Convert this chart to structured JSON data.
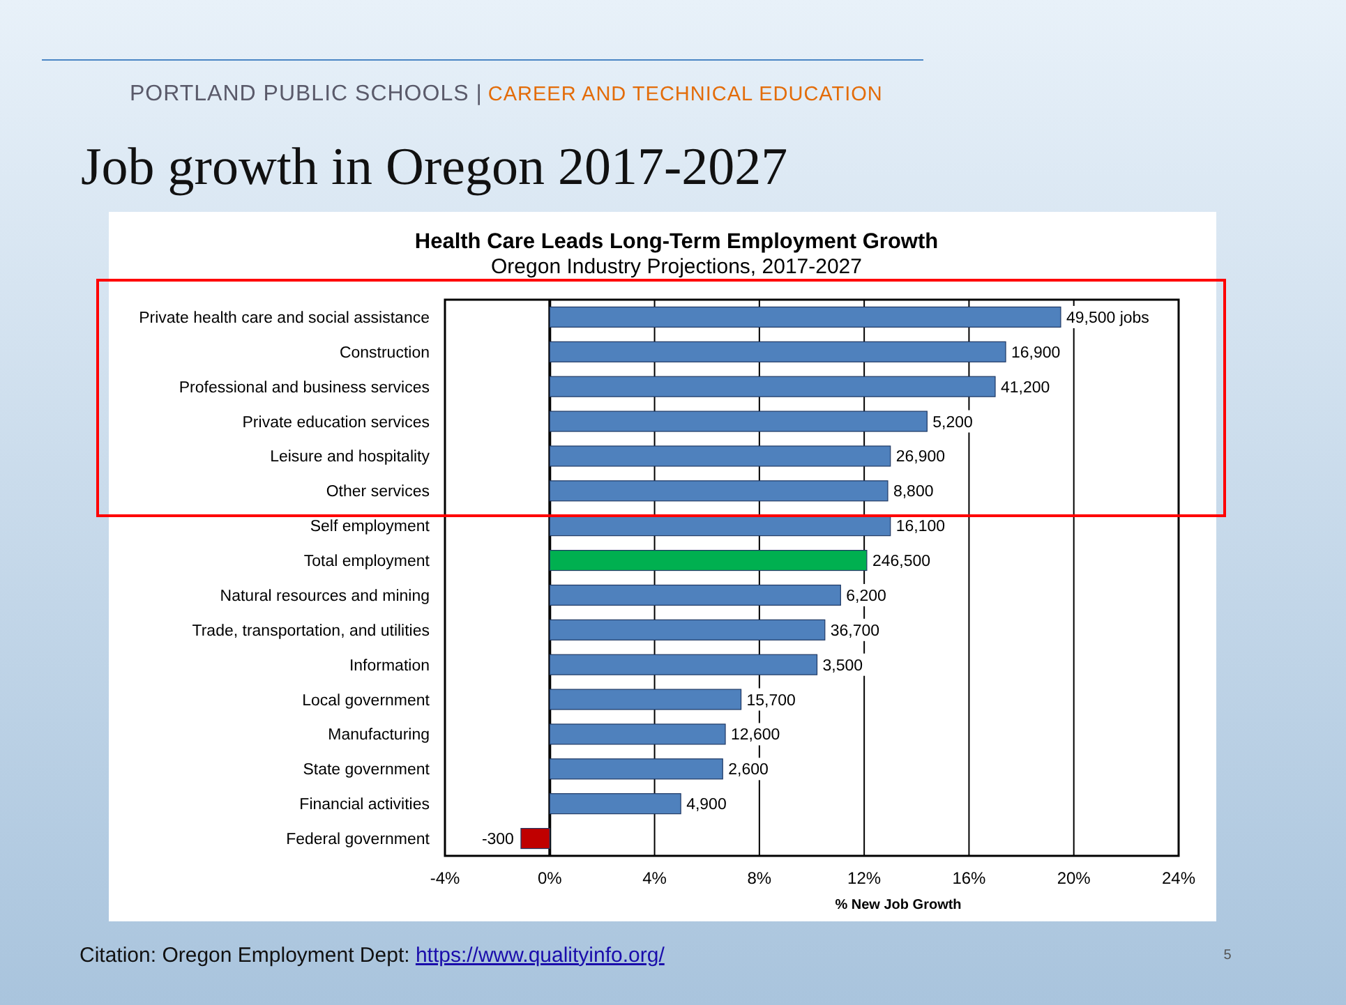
{
  "chart_data": {
    "type": "bar",
    "orientation": "horizontal",
    "title": "Health Care Leads Long-Term Employment Growth",
    "subtitle": "Oregon Industry Projections, 2017-2027",
    "xlabel": "% New Job Growth",
    "categories": [
      "Private health care and social assistance",
      "Construction",
      "Professional and business services",
      "Private education services",
      "Leisure and hospitality",
      "Other services",
      "Self employment",
      "Total employment",
      "Natural resources and mining",
      "Trade, transportation, and utilities",
      "Information",
      "Local government",
      "Manufacturing",
      "State government",
      "Financial activities",
      "Federal government"
    ],
    "values": [
      19.5,
      17.4,
      17.0,
      14.4,
      13.0,
      12.9,
      13.0,
      12.1,
      11.1,
      10.5,
      10.2,
      7.3,
      6.7,
      6.6,
      5.0,
      -1.1
    ],
    "colors": [
      "#4f81bd",
      "#4f81bd",
      "#4f81bd",
      "#4f81bd",
      "#4f81bd",
      "#4f81bd",
      "#4f81bd",
      "#00b050",
      "#4f81bd",
      "#4f81bd",
      "#4f81bd",
      "#4f81bd",
      "#4f81bd",
      "#4f81bd",
      "#4f81bd",
      "#c00000"
    ],
    "xlim": [
      -4,
      24
    ],
    "xticks": [
      {
        "value": -4,
        "label": "-4%"
      },
      {
        "value": 0,
        "label": "0%"
      },
      {
        "value": 4,
        "label": "4%"
      },
      {
        "value": 8,
        "label": "8%"
      },
      {
        "value": 12,
        "label": "12%"
      },
      {
        "value": 16,
        "label": "16%"
      },
      {
        "value": 20,
        "label": "20%"
      },
      {
        "value": 24,
        "label": "24%"
      }
    ],
    "grid": "x",
    "annotations": [
      "PORTLAND PUBLIC SCHOOLS |",
      "CAREER AND TECHNICAL EDUCATION",
      "Job growth in Oregon 2017-2027",
      "Citation:  Oregon Employment Dept: ",
      "https://www.qualityinfo.org/",
      "5",
      {
        "text": "49,500 jobs",
        "x": 19.5,
        "y": "Private health care and social assistance"
      },
      {
        "text": "16,900",
        "x": 17.4,
        "y": "Construction"
      },
      {
        "text": "41,200",
        "x": 17.0,
        "y": "Professional and business services"
      },
      {
        "text": "5,200",
        "x": 14.4,
        "y": "Private education services"
      },
      {
        "text": "26,900",
        "x": 13.0,
        "y": "Leisure and hospitality"
      },
      {
        "text": "8,800",
        "x": 12.9,
        "y": "Other services"
      },
      {
        "text": "16,100",
        "x": 13.0,
        "y": "Self employment"
      },
      {
        "text": "246,500",
        "x": 12.1,
        "y": "Total employment"
      },
      {
        "text": "6,200",
        "x": 11.1,
        "y": "Natural resources and mining"
      },
      {
        "text": "36,700",
        "x": 10.5,
        "y": "Trade, transportation, and utilities"
      },
      {
        "text": "3,500",
        "x": 10.2,
        "y": "Information"
      },
      {
        "text": "15,700",
        "x": 7.3,
        "y": "Local government"
      },
      {
        "text": "12,600",
        "x": 6.7,
        "y": "Manufacturing"
      },
      {
        "text": "2,600",
        "x": 6.6,
        "y": "State government"
      },
      {
        "text": "4,900",
        "x": 5.0,
        "y": "Financial activities"
      },
      {
        "text": "-300",
        "x": -1.1,
        "y": "Federal government"
      }
    ]
  }
}
